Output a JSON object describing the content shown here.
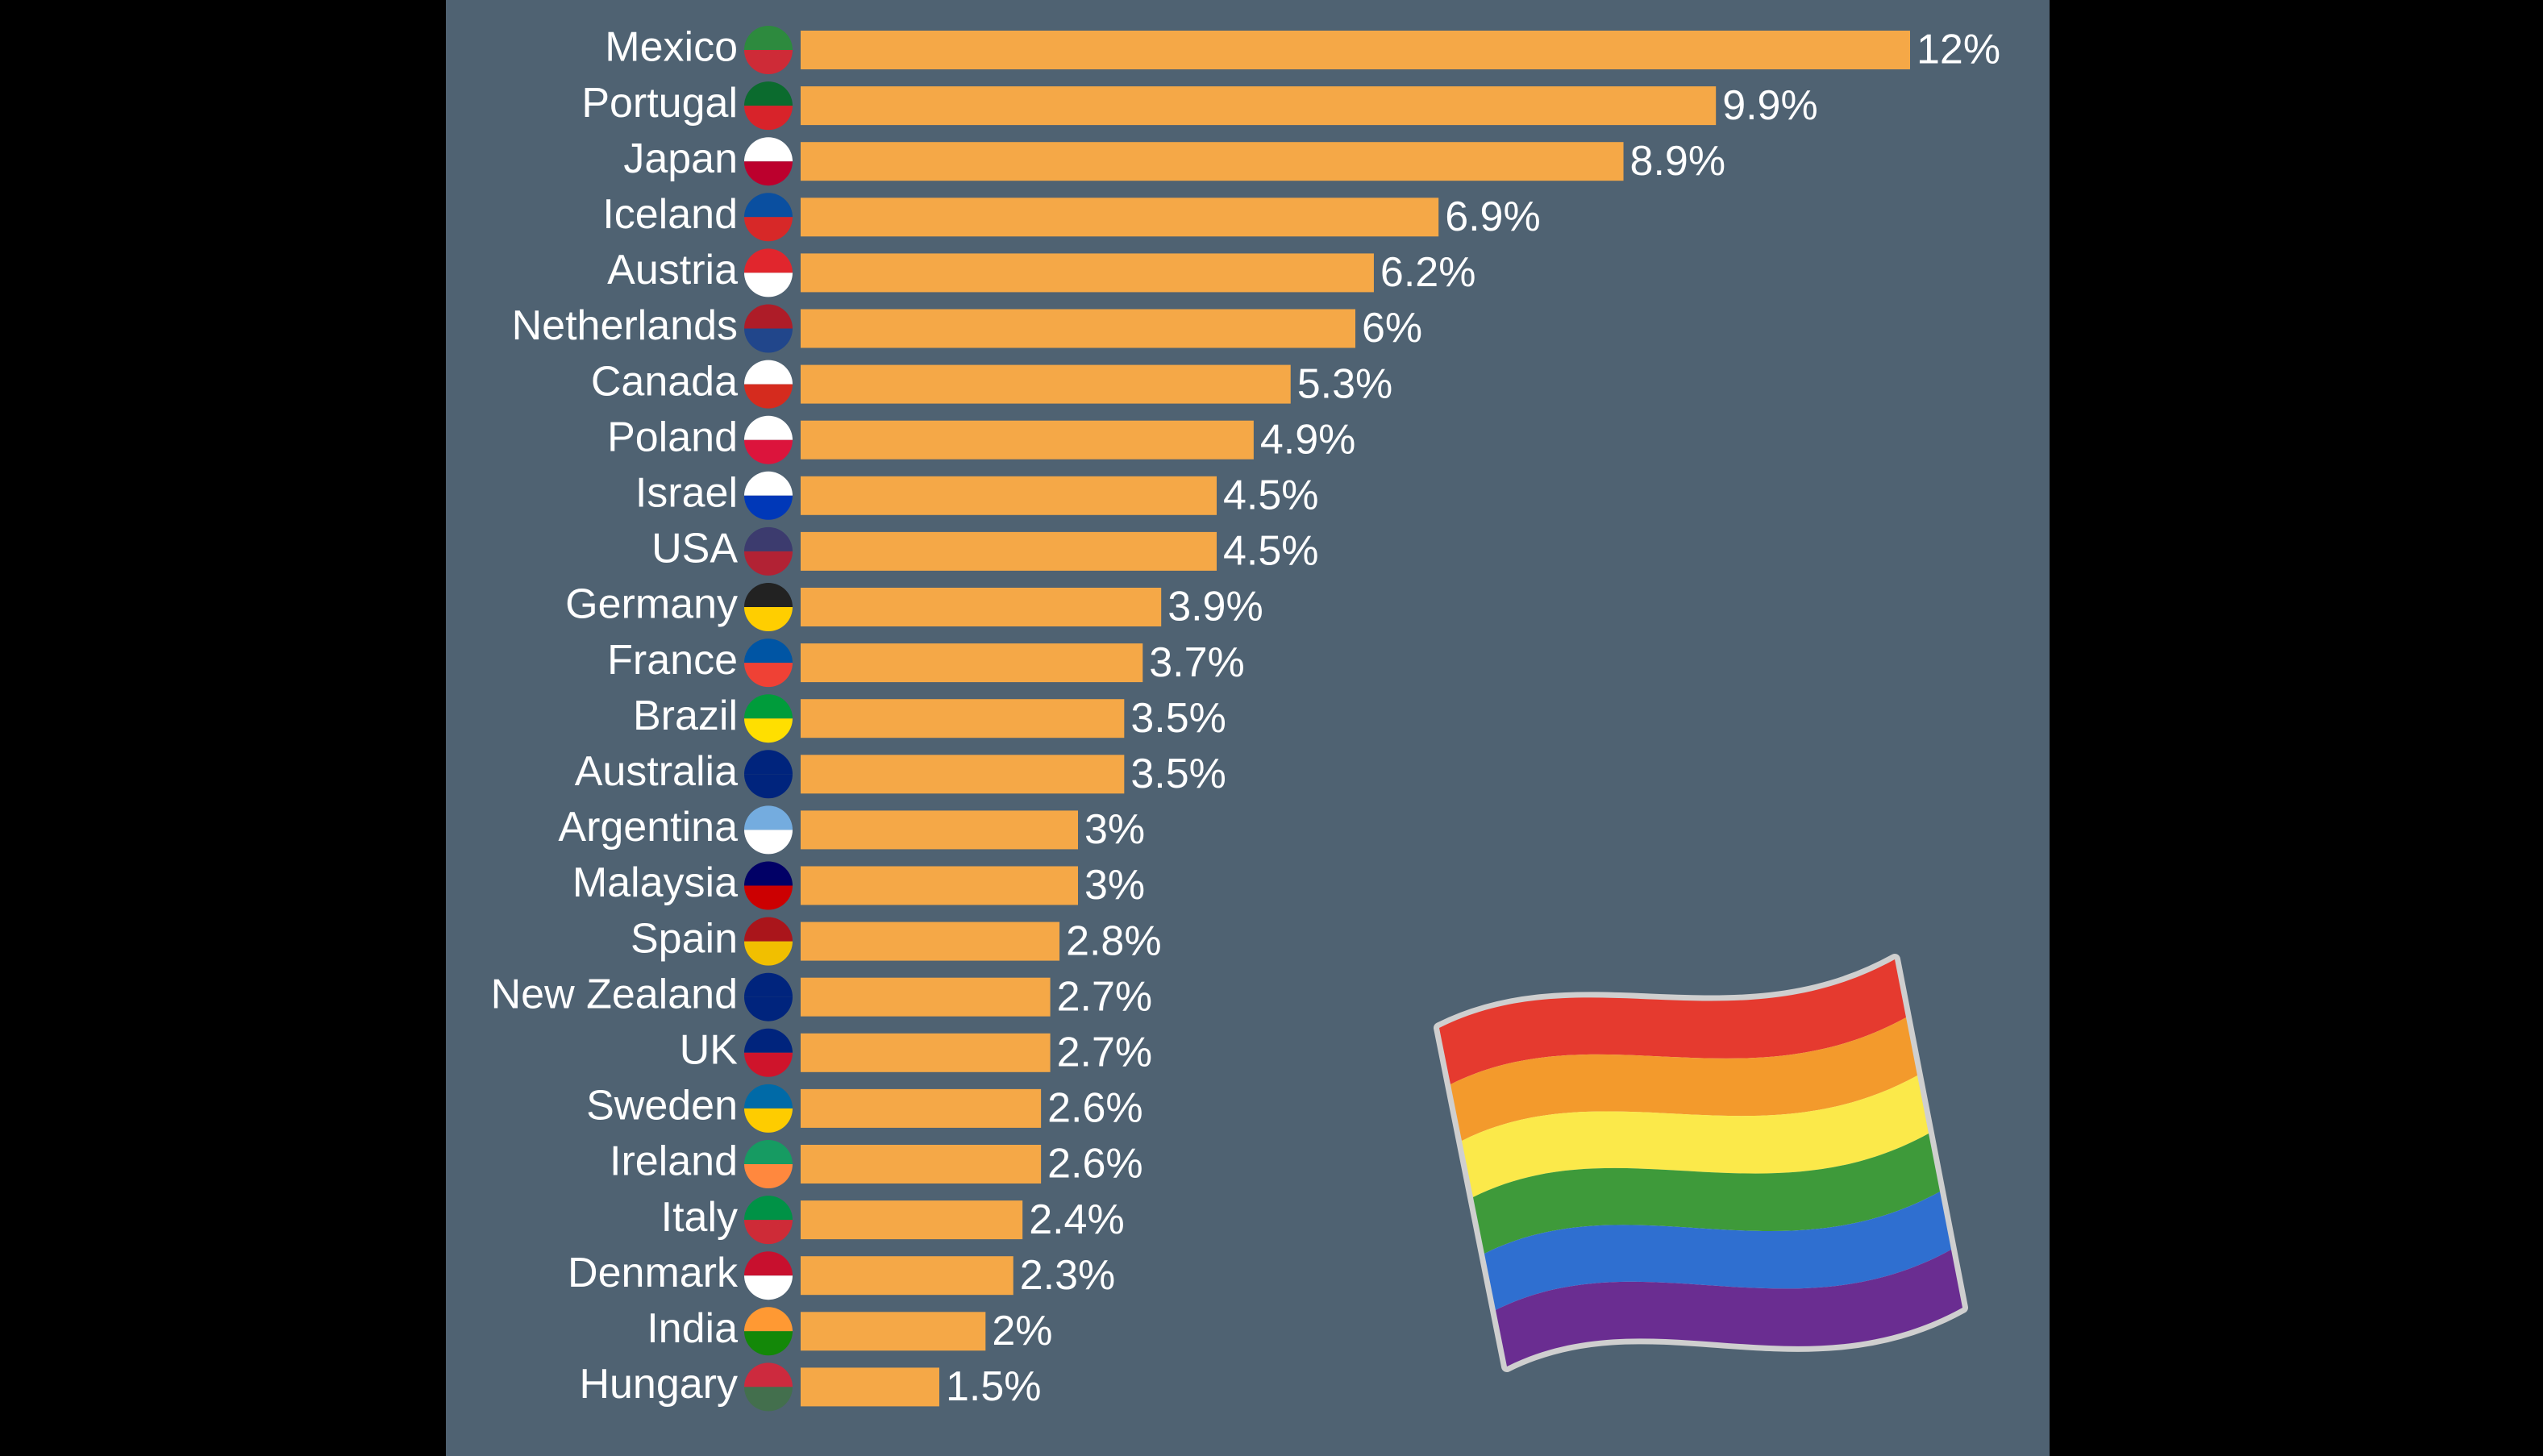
{
  "chart_data": {
    "type": "bar",
    "orientation": "horizontal",
    "color": "#f5a847",
    "categories": [
      "Mexico",
      "Portugal",
      "Japan",
      "Iceland",
      "Austria",
      "Netherlands",
      "Canada",
      "Poland",
      "Israel",
      "USA",
      "Germany",
      "France",
      "Brazil",
      "Australia",
      "Argentina",
      "Malaysia",
      "Spain",
      "New Zealand",
      "UK",
      "Sweden",
      "Ireland",
      "Italy",
      "Denmark",
      "India",
      "Hungary"
    ],
    "values": [
      12,
      9.9,
      8.9,
      6.9,
      6.2,
      6,
      5.3,
      4.9,
      4.5,
      4.5,
      3.9,
      3.7,
      3.5,
      3.5,
      3,
      3,
      2.8,
      2.7,
      2.7,
      2.6,
      2.6,
      2.4,
      2.3,
      2,
      1.5
    ],
    "value_labels": [
      "12%",
      "9.9%",
      "8.9%",
      "6.9%",
      "6.2%",
      "6%",
      "5.3%",
      "4.9%",
      "4.5%",
      "4.5%",
      "3.9%",
      "3.7%",
      "3.5%",
      "3.5%",
      "3%",
      "3%",
      "2.8%",
      "2.7%",
      "2.7%",
      "2.6%",
      "2.6%",
      "2.4%",
      "2.3%",
      "2%",
      "1.5%"
    ]
  }
}
